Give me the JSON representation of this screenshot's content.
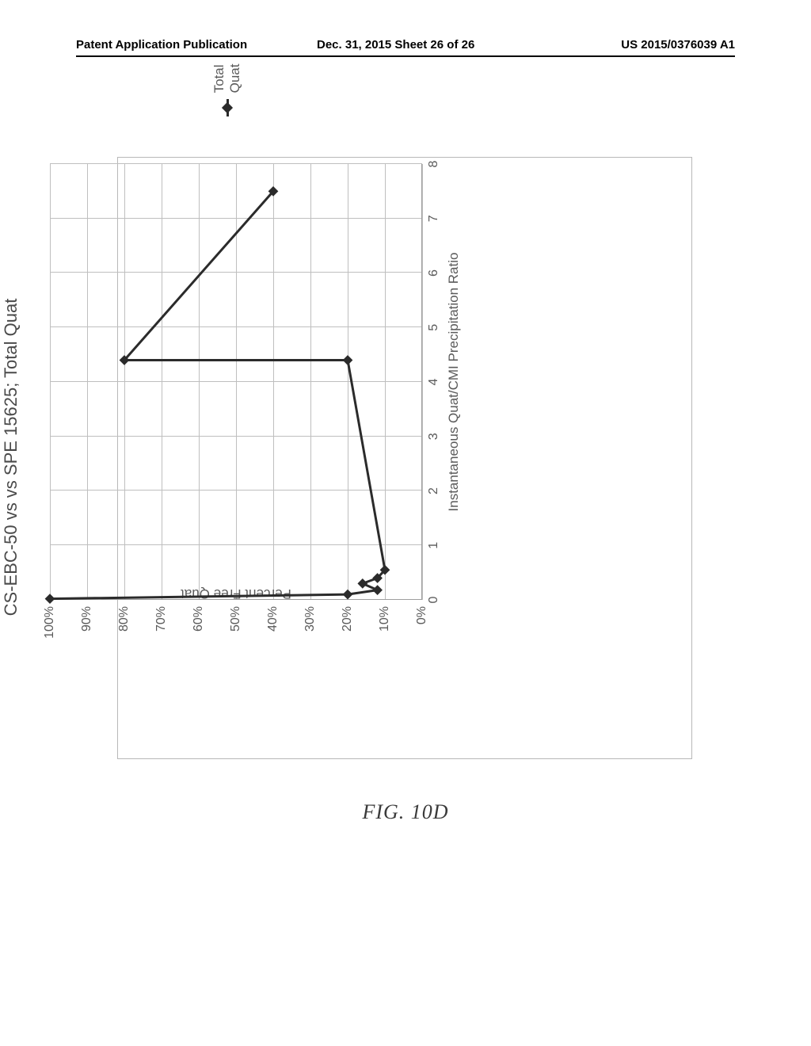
{
  "header": {
    "left": "Patent Application Publication",
    "center": "Dec. 31, 2015  Sheet 26 of 26",
    "right": "US 2015/0376039 A1"
  },
  "figure_label": "FIG. 10D",
  "chart": {
    "type": "line",
    "title": "CS-EBC-50  vs  vs SPE 15625; Total Quat",
    "x_axis_title": "Instantaneous Quat/CMI Precipitation Ratio",
    "y_axis_title": "Percent Free Quat",
    "xlim": [
      0,
      8
    ],
    "ylim": [
      0,
      100
    ],
    "x_ticks": [
      0,
      1,
      2,
      3,
      4,
      5,
      6,
      7,
      8
    ],
    "y_ticks": [
      0,
      10,
      20,
      30,
      40,
      50,
      60,
      70,
      80,
      90,
      100
    ],
    "y_tick_labels": [
      "0%",
      "10%",
      "20%",
      "30%",
      "40%",
      "50%",
      "60%",
      "70%",
      "80%",
      "90%",
      "100%"
    ],
    "background_color": "#ffffff",
    "grid_color": "#bfbfbf",
    "series": {
      "name": "Total Quat",
      "color": "#2b2b2b",
      "line_width": 3,
      "marker": "diamond",
      "marker_size": 9,
      "points": [
        {
          "x": 0.02,
          "y": 100
        },
        {
          "x": 0.1,
          "y": 20
        },
        {
          "x": 0.18,
          "y": 12
        },
        {
          "x": 0.3,
          "y": 16
        },
        {
          "x": 0.4,
          "y": 12
        },
        {
          "x": 0.55,
          "y": 10
        },
        {
          "x": 4.4,
          "y": 20
        },
        {
          "x": 4.4,
          "y": 80
        },
        {
          "x": 7.5,
          "y": 40
        }
      ]
    },
    "legend": {
      "label": "Total Quat"
    },
    "title_fontsize": 22,
    "axis_label_fontsize": 17,
    "tick_fontsize": 16
  }
}
